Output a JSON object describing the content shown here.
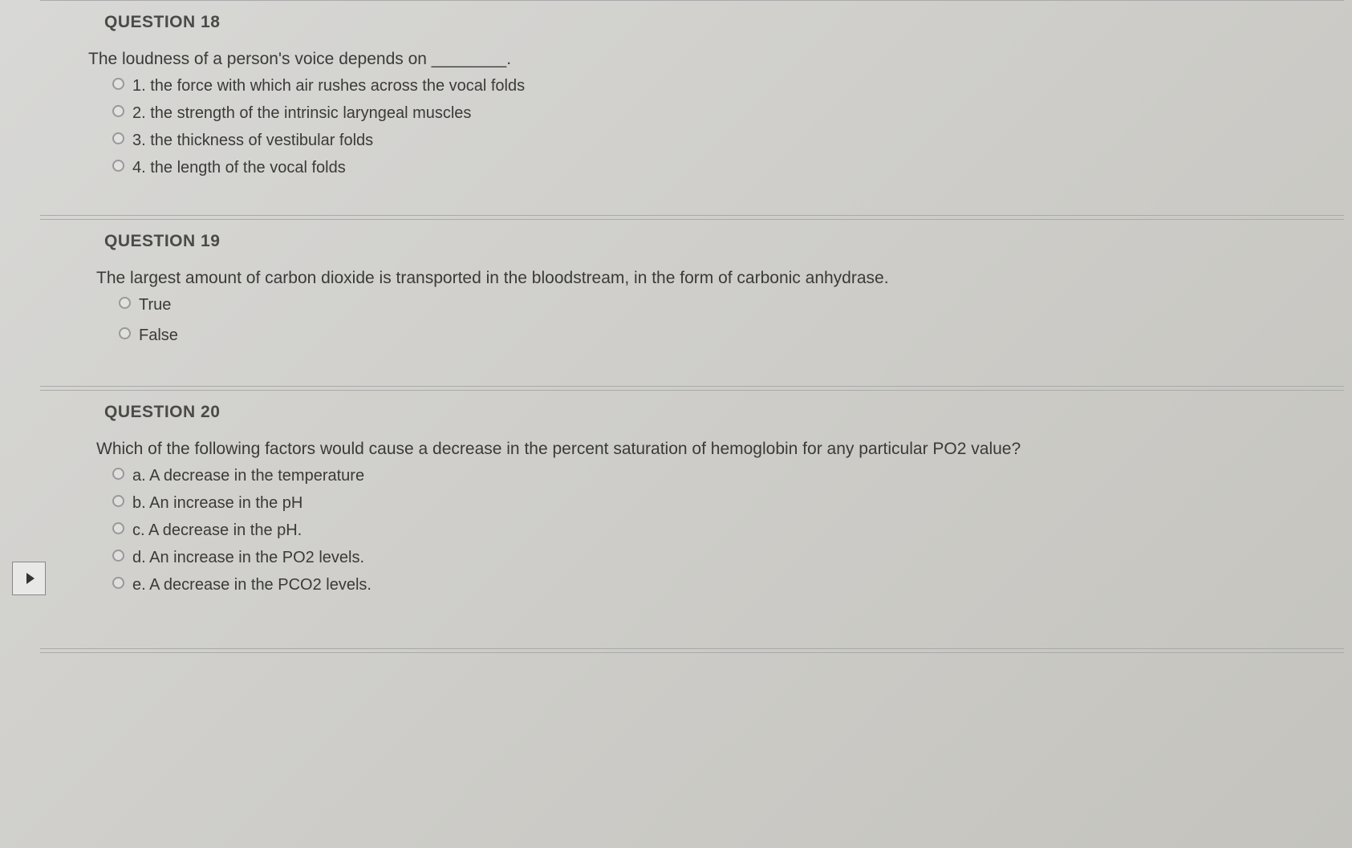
{
  "colors": {
    "background_start": "#d8d8d6",
    "background_end": "#c4c3bd",
    "text_primary": "#3a3a38",
    "text_title": "#4a4a48",
    "border": "#aaaaaa",
    "radio_border": "#999999"
  },
  "typography": {
    "title_fontsize": 21,
    "title_weight": 700,
    "body_fontsize": 21,
    "option_fontsize": 20,
    "font_family": "Helvetica Neue, Helvetica, Arial, sans-serif"
  },
  "questions": [
    {
      "number": "QUESTION 18",
      "prompt": "The loudness of a person's voice depends on ________.",
      "options": [
        "1. the force with which air rushes across the vocal folds",
        "2. the strength of the intrinsic laryngeal muscles",
        "3. the thickness of vestibular folds",
        "4. the length of the vocal folds"
      ]
    },
    {
      "number": "QUESTION 19",
      "prompt": "The largest amount of carbon dioxide is transported in the bloodstream, in the form of carbonic anhydrase.",
      "options": [
        "True",
        "False"
      ]
    },
    {
      "number": "QUESTION 20",
      "prompt": "Which of the following factors would cause a decrease in the percent saturation of hemoglobin for any particular PO2 value?",
      "options": [
        "a. A decrease in the temperature",
        "b. An increase in the pH",
        "c. A decrease in the pH.",
        "d. An increase in the PO2 levels.",
        "e. A decrease in the PCO2 levels."
      ]
    }
  ]
}
